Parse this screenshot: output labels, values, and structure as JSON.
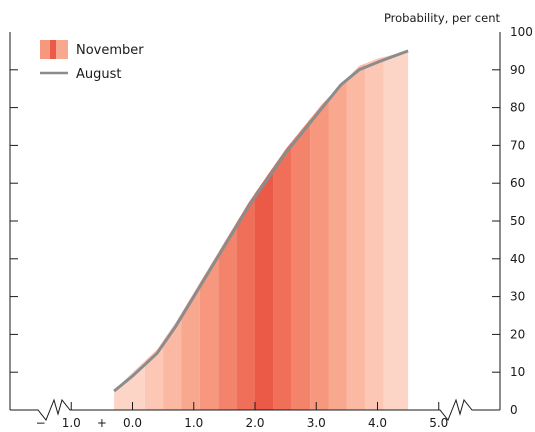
{
  "chart_data": {
    "type": "area",
    "title": "",
    "ylabel": "Probability, per cent",
    "xlabel": "",
    "ylim": [
      0,
      100
    ],
    "yticks": [
      "0",
      "10",
      "20",
      "30",
      "40",
      "50",
      "60",
      "70",
      "80",
      "90",
      "100"
    ],
    "xticks": [
      {
        "value": -1.0,
        "label": "1.0",
        "sign": "−"
      },
      {
        "value": 0.0,
        "label": "0.0",
        "sign": "+"
      },
      {
        "value": 1.0,
        "label": "1.0",
        "sign": ""
      },
      {
        "value": 2.0,
        "label": "2.0",
        "sign": ""
      },
      {
        "value": 3.0,
        "label": "3.0",
        "sign": ""
      },
      {
        "value": 4.0,
        "label": "4.0",
        "sign": ""
      },
      {
        "value": 5.0,
        "label": "5.0",
        "sign": ""
      }
    ],
    "xlim": [
      -2.0,
      6.0
    ],
    "axis_break_marks": true,
    "legend_position": "top-left",
    "series": [
      {
        "name": "November",
        "style": "fan-band",
        "x": [
          -0.3,
          0.0,
          0.4,
          0.7,
          1.0,
          1.3,
          1.6,
          1.9,
          2.2,
          2.5,
          2.8,
          3.1,
          3.4,
          3.7,
          4.0,
          4.5
        ],
        "values": [
          5,
          10,
          16,
          23,
          31,
          39,
          47,
          55,
          62,
          69,
          75,
          81,
          86,
          91,
          93,
          95
        ]
      },
      {
        "name": "August",
        "style": "line",
        "x": [
          -0.3,
          0.0,
          0.4,
          0.7,
          1.0,
          1.3,
          1.6,
          1.9,
          2.2,
          2.5,
          2.8,
          3.1,
          3.4,
          3.7,
          4.0,
          4.5
        ],
        "values": [
          5,
          9,
          15,
          22,
          30,
          38,
          46,
          54,
          61,
          68,
          74,
          80,
          86,
          90,
          92,
          95
        ]
      }
    ],
    "band_colors": [
      "#fdd5c7",
      "#fdc7b5",
      "#fbb8a3",
      "#f9a890",
      "#f7977d",
      "#f3846b",
      "#ef6f58",
      "#ea5a47",
      "#ef6f58",
      "#f3846b",
      "#f7977d",
      "#f9a890",
      "#fbb8a3",
      "#fdc7b5",
      "#fdd5c7"
    ],
    "band_edges": [
      -0.3,
      0.2,
      0.5,
      0.8,
      1.1,
      1.4,
      1.7,
      2.0,
      2.3,
      2.6,
      2.9,
      3.2,
      3.5,
      3.8,
      4.1,
      4.5
    ],
    "colors": {
      "august_line": "#8c8c8c",
      "axis": "#1a1a1a",
      "legend_band_light": "#f7977d",
      "legend_band_dark": "#ea5a47"
    }
  }
}
